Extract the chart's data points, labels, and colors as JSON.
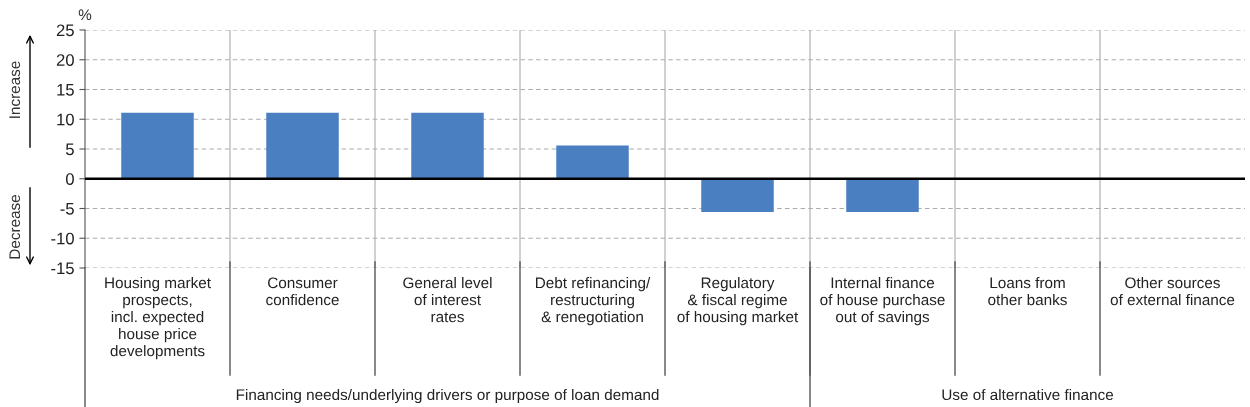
{
  "chart_data": {
    "type": "bar",
    "ylabel": "%",
    "categories": [
      "Housing market\nprospects,\nincl. expected\nhouse price\ndevelopments",
      "Consumer\nconfidence",
      "General level\nof interest\nrates",
      "Debt refinancing/\nrestructuring\n& renegotiation",
      "Regulatory\n& fiscal regime\nof housing market",
      "Internal finance\nof house purchase\nout of savings",
      "Loans from\nother banks",
      "Other sources\nof external finance"
    ],
    "values": [
      11.1,
      11.1,
      11.1,
      5.6,
      -5.6,
      -5.6,
      0,
      0
    ],
    "color": "#4a7fc1",
    "ylim": [
      -15,
      25
    ],
    "yticks": [
      -15,
      -10,
      -5,
      0,
      5,
      10,
      15,
      20,
      25
    ],
    "grid": "y",
    "annotations": [
      "Increase",
      "Decrease",
      "Financing needs/underlying drivers or purpose of loan demand",
      "Use of alternative finance"
    ]
  }
}
